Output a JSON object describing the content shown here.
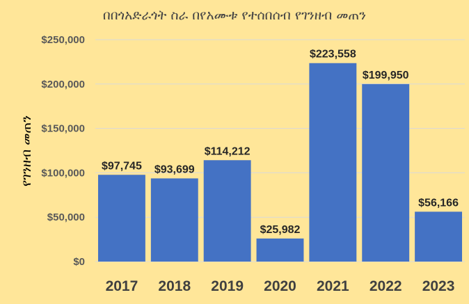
{
  "chart_data": {
    "type": "bar",
    "title": "በበጎአድራጎት ስራ በየአሙቱ የተሰበሰብ የገንዘብ መጠን",
    "xlabel": "",
    "ylabel": "የገንዘብ መጠን",
    "categories": [
      "2017",
      "2018",
      "2019",
      "2020",
      "2021",
      "2022",
      "2023"
    ],
    "values": [
      97745,
      93699,
      114212,
      25982,
      223558,
      199950,
      56166
    ],
    "data_labels": [
      "$97,745",
      "$93,699",
      "$114,212",
      "$25,982",
      "$223,558",
      "$199,950",
      "$56,166"
    ],
    "yticks": [
      0,
      50000,
      100000,
      150000,
      200000,
      250000
    ],
    "ytick_labels": [
      "$0",
      "$50,000",
      "$100,000",
      "$150,000",
      "$200,000",
      "$250,000"
    ],
    "ylim": [
      0,
      250000
    ],
    "grid": true,
    "legend": "none",
    "colors": {
      "bar": "#4472c4",
      "background": "#ffe699",
      "grid": "#d9d9d9"
    }
  }
}
